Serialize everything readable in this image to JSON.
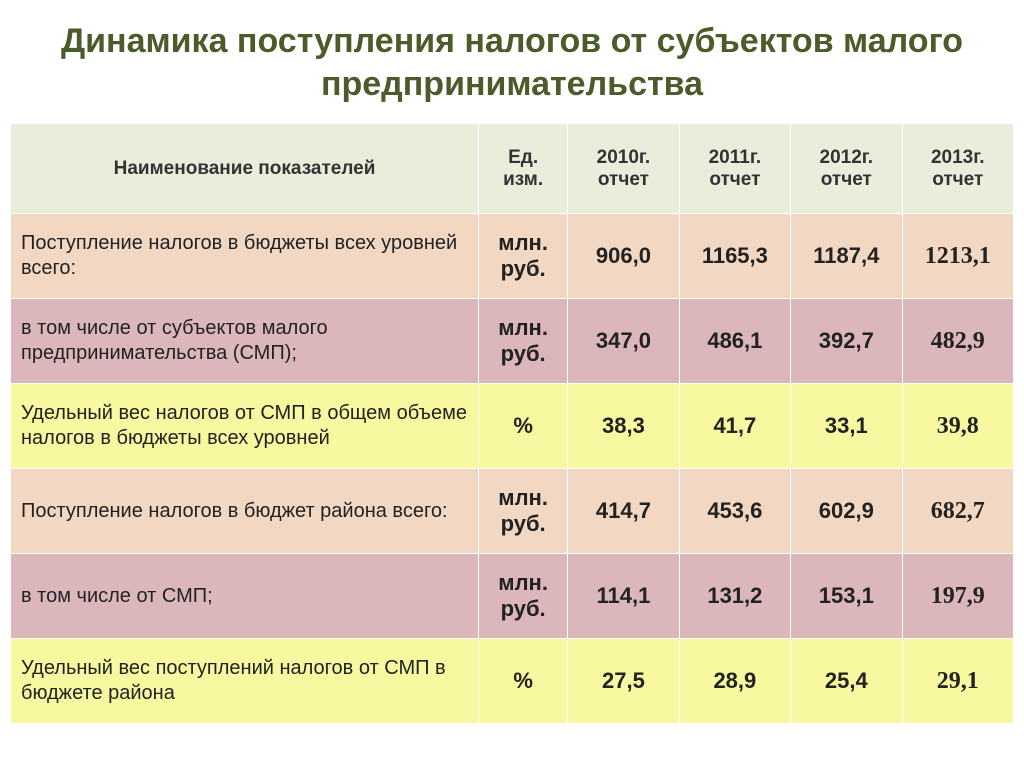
{
  "title": "Динамика поступления налогов от субъектов малого предпринимательства",
  "table": {
    "headers": {
      "name": "Наименование показателей",
      "unit": "Ед. изм.",
      "y2010": "2010г. отчет",
      "y2011": "2011г. отчет",
      "y2012": "2012г. отчет",
      "y2013": "2013г. отчет"
    },
    "rows": [
      {
        "row_color": "orange",
        "indicator": "Поступление налогов в бюджеты всех уровней всего:",
        "unit": "млн. руб.",
        "v2010": "906,0",
        "v2011": "1165,3",
        "v2012": "1187,4",
        "v2013": "1213,1"
      },
      {
        "row_color": "pink",
        "indicator": "в том числе от субъектов малого предпринимательства (СМП);",
        "unit": "млн. руб.",
        "v2010": "347,0",
        "v2011": "486,1",
        "v2012": "392,7",
        "v2013": "482,9"
      },
      {
        "row_color": "yellow",
        "indicator": "Удельный вес налогов от СМП в общем объеме налогов в бюджеты всех уровней",
        "unit": "%",
        "v2010": "38,3",
        "v2011": "41,7",
        "v2012": "33,1",
        "v2013": "39,8"
      },
      {
        "row_color": "orange",
        "indicator": "Поступление налогов в бюджет района всего:",
        "unit": "млн. руб.",
        "v2010": "414,7",
        "v2011": "453,6",
        "v2012": "602,9",
        "v2013": "682,7"
      },
      {
        "row_color": "pink",
        "indicator": "в том числе от СМП;",
        "unit": "млн. руб.",
        "v2010": "114,1",
        "v2011": "131,2",
        "v2012": "153,1",
        "v2013": "197,9"
      },
      {
        "row_color": "yellow",
        "indicator": "Удельный вес поступлений налогов от СМП в бюджете района",
        "unit": "%",
        "v2010": "27,5",
        "v2011": "28,9",
        "v2012": "25,4",
        "v2013": "29,1"
      }
    ],
    "colors": {
      "header_bg": "#e9eedc",
      "orange": "#f2d7c2",
      "pink": "#dbb6bb",
      "yellow": "#f8f8a0",
      "title_color": "#4a5c2a",
      "border": "#ffffff"
    },
    "column_widths": {
      "name": 420,
      "unit": 80,
      "year": 100
    },
    "fonts": {
      "title_size": 34,
      "header_size": 19,
      "indicator_size": 20,
      "value_size": 22,
      "last_col_family": "Times New Roman",
      "last_col_size": 24
    }
  }
}
